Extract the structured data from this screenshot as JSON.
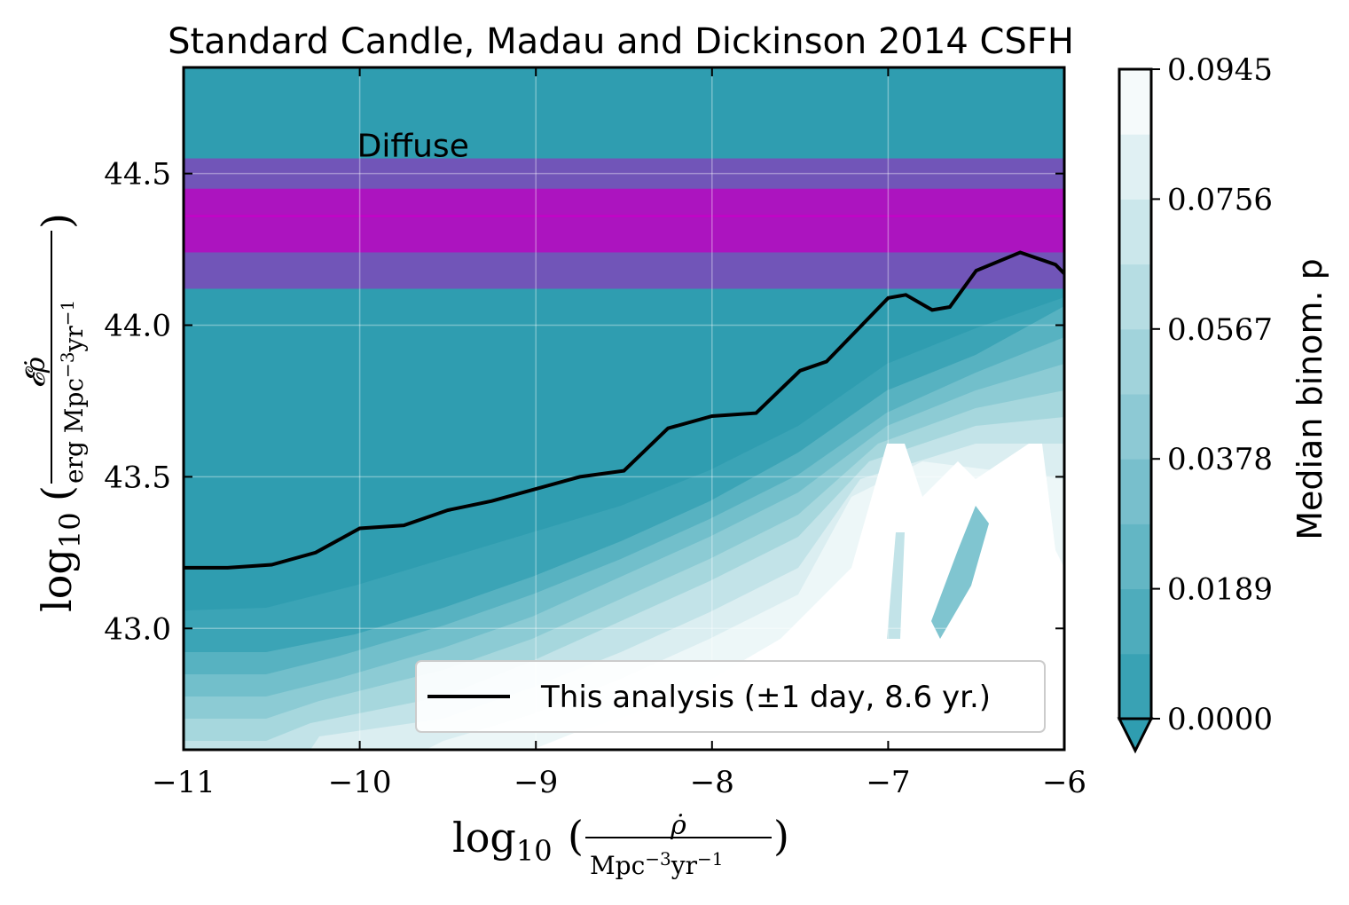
{
  "chart_data": {
    "type": "heatmap",
    "title": "Standard Candle, Madau and Dickinson 2014 CSFH",
    "xlabel": {
      "prefix": "log",
      "sub": "10",
      "num": "ρ̇",
      "den": "Mpc",
      "den_exp": "−3",
      "den_tail": "yr",
      "den_tail_exp": "−1"
    },
    "ylabel": {
      "prefix": "log",
      "sub": "10",
      "num": "𝓔ρ̇",
      "den": "erg Mpc",
      "den_exp": "−3",
      "den_tail": "yr",
      "den_tail_exp": "−1"
    },
    "xlim": [
      -11,
      -6
    ],
    "ylim": [
      42.6,
      44.85
    ],
    "xticks": [
      -11,
      -10,
      -9,
      -8,
      -7,
      -6
    ],
    "xtick_labels": [
      "−11",
      "−10",
      "−9",
      "−8",
      "−7",
      "−6"
    ],
    "yticks": [
      43.0,
      43.5,
      44.0,
      44.5
    ],
    "ytick_labels": [
      "43.0",
      "43.5",
      "44.0",
      "44.5"
    ],
    "grid": true,
    "annotation": {
      "text": "Diffuse",
      "x": -10.0,
      "y": 44.6,
      "color": "#bb00bb"
    },
    "diffuse_band": {
      "outer": [
        44.12,
        44.55
      ],
      "inner": [
        44.24,
        44.45
      ],
      "center": 44.36
    },
    "series": [
      {
        "name": "This analysis (±1 day, 8.6 yr.)",
        "color": "#000000",
        "x": [
          -11.0,
          -10.75,
          -10.5,
          -10.25,
          -10.0,
          -9.75,
          -9.5,
          -9.25,
          -9.0,
          -8.75,
          -8.5,
          -8.25,
          -8.0,
          -7.75,
          -7.5,
          -7.35,
          -7.25,
          -7.0,
          -6.9,
          -6.75,
          -6.65,
          -6.5,
          -6.25,
          -6.05,
          -6.0
        ],
        "y": [
          43.2,
          43.2,
          43.21,
          43.25,
          43.33,
          43.34,
          43.39,
          43.42,
          43.46,
          43.5,
          43.52,
          43.66,
          43.7,
          43.71,
          43.85,
          43.88,
          43.94,
          44.09,
          44.1,
          44.05,
          44.06,
          44.18,
          44.24,
          44.2,
          44.17
        ]
      }
    ],
    "colorbar": {
      "label": "Median binom. p",
      "ticks": [
        "0.0000",
        "0.0189",
        "0.0378",
        "0.0567",
        "0.0756",
        "0.0945"
      ],
      "tick_values": [
        0.0,
        0.0189,
        0.0378,
        0.0567,
        0.0756,
        0.0945
      ],
      "levels": 10,
      "extend": "min",
      "color_low": "#2f9db0",
      "color_high": "#ffffff"
    },
    "legend": {
      "entries": [
        "This analysis (±1 day, 8.6 yr.)"
      ],
      "placement": "lower-right"
    }
  }
}
